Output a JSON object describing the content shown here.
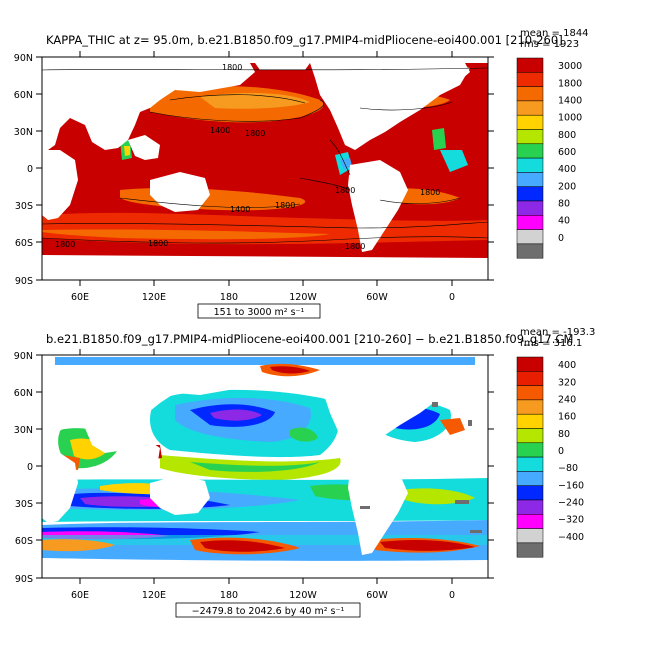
{
  "panels": [
    {
      "title": "KAPPA_THIC at z=  95.0m, b.e21.B1850.f09_g17.PMIP4-midPliocene-eoi400.001 [210-260]",
      "stat_mean": "mean = 1844",
      "stat_rms": "rms = 1923",
      "range_label": "151 to 3000 m² s⁻¹",
      "y_ticks": [
        "90N",
        "60N",
        "30N",
        "0",
        "30S",
        "60S",
        "90S"
      ],
      "x_ticks": [
        "60E",
        "120E",
        "180",
        "120W",
        "60W",
        "0"
      ],
      "contour_labels": [
        "1800",
        "1400",
        "1800",
        "1400",
        "1800",
        "1800",
        "1800",
        "1800",
        "1800",
        "1800"
      ],
      "colorbar": {
        "labels": [
          "3000",
          "1800",
          "1400",
          "1000",
          "800",
          "600",
          "400",
          "200",
          "80",
          "40",
          "0"
        ],
        "colors": [
          "#c80000",
          "#ee2a00",
          "#f56a00",
          "#f79a20",
          "#ffd200",
          "#b4e600",
          "#28d250",
          "#14dcdc",
          "#46aaff",
          "#0028ff",
          "#8c28e6",
          "#ff00ff",
          "#d2d2d2",
          "#6e6e6e"
        ]
      }
    },
    {
      "title": "b.e21.B1850.f09_g17.PMIP4-midPliocene-eoi400.001 [210-260] − b.e21.B1850.f09_g17.CM",
      "stat_mean": "mean = -193.3",
      "stat_rms": "rms = 316.1",
      "range_label": "−2479.8 to 2042.6 by 40 m² s⁻¹",
      "y_ticks": [
        "90N",
        "60N",
        "30N",
        "0",
        "30S",
        "60S",
        "90S"
      ],
      "x_ticks": [
        "60E",
        "120E",
        "180",
        "120W",
        "60W",
        "0"
      ],
      "colorbar": {
        "labels": [
          "400",
          "320",
          "240",
          "160",
          "80",
          "0",
          "−80",
          "−160",
          "−240",
          "−320",
          "−400"
        ],
        "colors": [
          "#c80000",
          "#e81e00",
          "#f55a00",
          "#f79a20",
          "#ffd200",
          "#b4e600",
          "#28d250",
          "#14dcdc",
          "#46aaff",
          "#0028ff",
          "#8c28e6",
          "#ff00ff",
          "#d2d2d2",
          "#6e6e6e"
        ]
      }
    }
  ]
}
